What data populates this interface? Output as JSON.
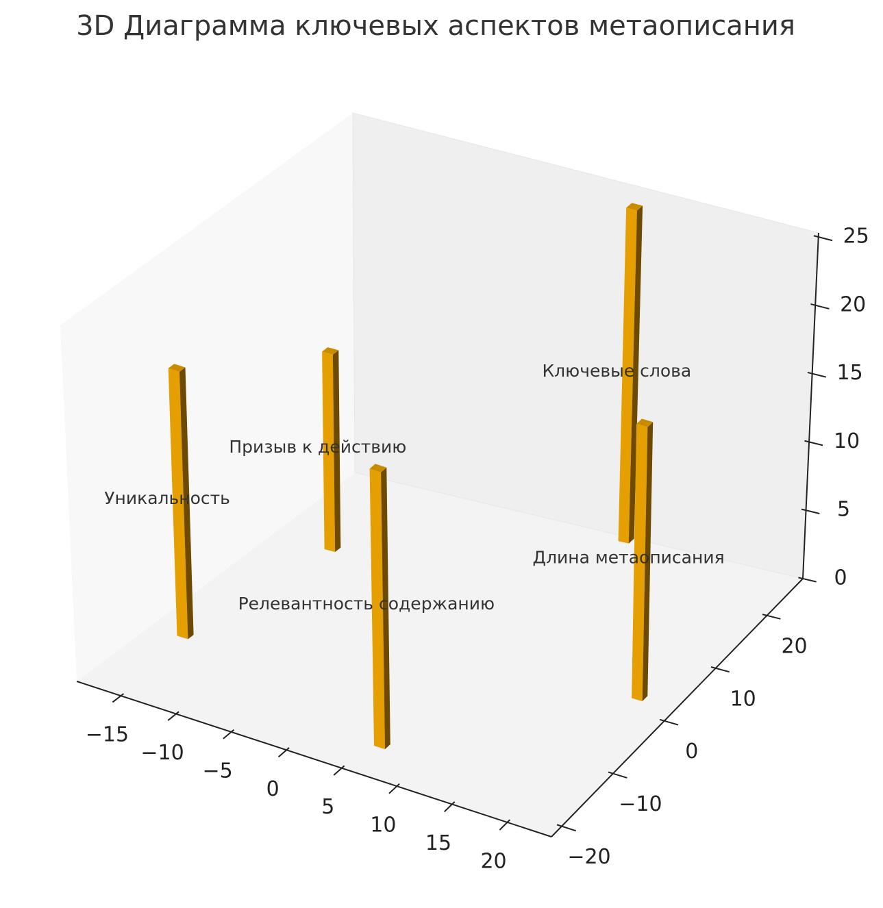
{
  "chart_data": {
    "type": "bar3d",
    "title": "3D Диаграмма ключевых аспектов метаописания",
    "categories": [
      "Уникальность",
      "Призыв к действию",
      "Релевантность содержанию",
      "Ключевые слова",
      "Длина метаописания"
    ],
    "x": [
      -16.4,
      -14,
      5.5,
      6.8,
      20
    ],
    "y": [
      -9.3,
      12.3,
      -17,
      26,
      2
    ],
    "values": [
      19,
      14,
      20,
      24,
      20
    ],
    "color": "#e69f00",
    "xlim": [
      -19,
      24
    ],
    "ylim": [
      -22,
      27
    ],
    "zlim": [
      0,
      25.3
    ],
    "xticks": [
      {
        "value": -15,
        "label": "−15"
      },
      {
        "value": -10,
        "label": "−10"
      },
      {
        "value": -5,
        "label": "−5"
      },
      0,
      5,
      10,
      15,
      20
    ],
    "yticks": [
      {
        "value": -20,
        "label": "−20"
      },
      {
        "value": -10,
        "label": "−10"
      },
      0,
      10,
      20
    ],
    "zticks": [
      0,
      5,
      10,
      15,
      20,
      25
    ]
  }
}
